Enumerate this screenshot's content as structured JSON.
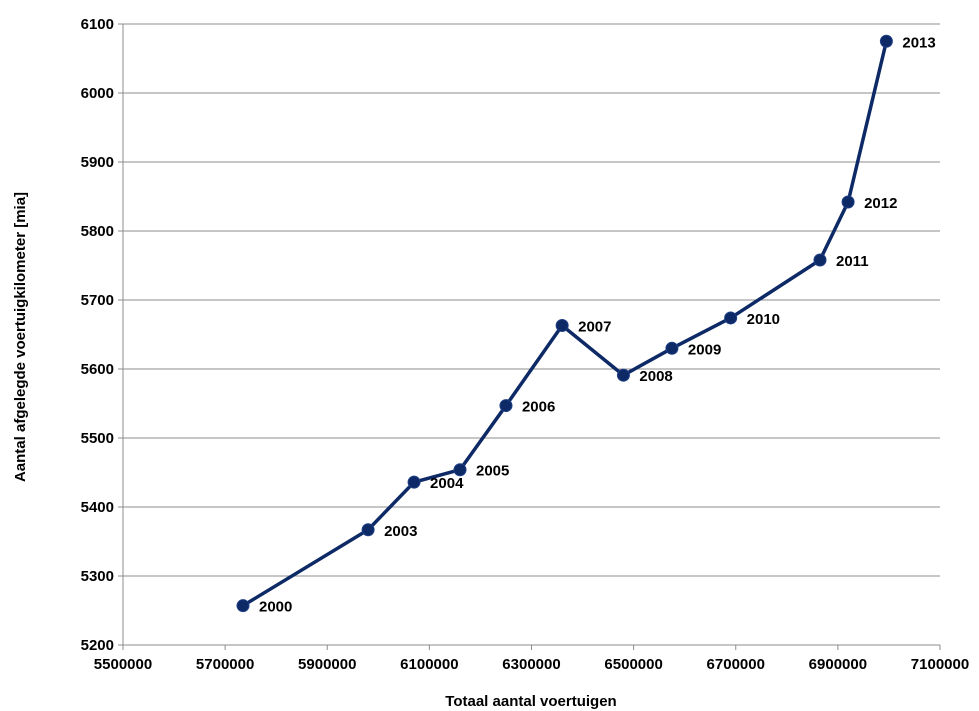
{
  "chart_data": {
    "type": "line",
    "title": "",
    "xlabel": "Totaal aantal voertuigen",
    "ylabel": "Aantal afgelegde voertuigkilometer [mia]",
    "xlim": [
      5500000,
      7100000
    ],
    "ylim": [
      5200,
      6100
    ],
    "x_ticks": [
      5500000,
      5700000,
      5900000,
      6100000,
      6300000,
      6500000,
      6700000,
      6900000,
      7100000
    ],
    "y_ticks": [
      5200,
      5300,
      5400,
      5500,
      5600,
      5700,
      5800,
      5900,
      6000,
      6100
    ],
    "grid": "horizontal",
    "legend": "none",
    "series": [
      {
        "color": "#0d2a66",
        "points": [
          {
            "label": "2000",
            "x": 5735000,
            "y": 5257
          },
          {
            "label": "2003",
            "x": 5980000,
            "y": 5367
          },
          {
            "label": "2004",
            "x": 6070000,
            "y": 5436
          },
          {
            "label": "2005",
            "x": 6160000,
            "y": 5454
          },
          {
            "label": "2006",
            "x": 6250000,
            "y": 5547
          },
          {
            "label": "2007",
            "x": 6360000,
            "y": 5663
          },
          {
            "label": "2008",
            "x": 6480000,
            "y": 5591
          },
          {
            "label": "2009",
            "x": 6575000,
            "y": 5630
          },
          {
            "label": "2010",
            "x": 6690000,
            "y": 5674
          },
          {
            "label": "2011",
            "x": 6865000,
            "y": 5758
          },
          {
            "label": "2012",
            "x": 6920000,
            "y": 5842
          },
          {
            "label": "2013",
            "x": 6995000,
            "y": 6075
          }
        ]
      }
    ]
  }
}
